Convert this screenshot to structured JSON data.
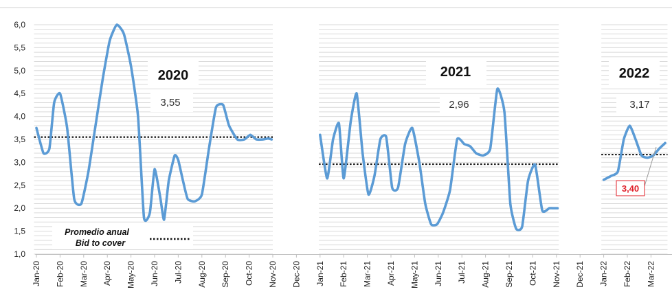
{
  "chart_data": {
    "type": "line",
    "ylim": [
      1.0,
      6.0
    ],
    "y_ticks": [
      "6,0",
      "5,5",
      "5,0",
      "4,5",
      "4,0",
      "3,5",
      "3,0",
      "2,5",
      "2,0",
      "1,5",
      "1,0"
    ],
    "x_ticks": [
      "Jan-20",
      "Feb-20",
      "Mar-20",
      "Apr-20",
      "May-20",
      "Jun-20",
      "Jul-20",
      "Aug-20",
      "Sep-20",
      "Oct-20",
      "Nov-20",
      "Dec-20",
      "Jan-21",
      "Feb-21",
      "Mar-21",
      "Apr-21",
      "May-21",
      "Jun-21",
      "Jul-21",
      "Aug-21",
      "Sep-21",
      "Oct-21",
      "Nov-21",
      "Dec-21",
      "Jan-22",
      "Feb-22",
      "Mar-22"
    ],
    "grid": true,
    "series_color": "#5b9bd5",
    "average_color": "#111111",
    "panels": [
      {
        "year": "2020",
        "average_label": "3,55",
        "average": 3.55,
        "x": [
          0,
          0.3,
          0.55,
          0.75,
          1.0,
          1.3,
          1.6,
          1.9,
          2.2,
          2.5,
          2.8,
          3.1,
          3.4,
          3.7,
          4.0,
          4.3,
          4.55,
          4.8,
          5.0,
          5.25,
          5.4,
          5.6,
          5.85,
          6.0,
          6.2,
          6.4,
          6.7,
          7.0,
          7.3,
          7.6,
          7.9,
          8.15,
          8.5,
          8.8,
          9.05,
          9.3,
          9.6,
          9.8,
          9.95
        ],
        "y": [
          3.75,
          3.2,
          3.3,
          4.3,
          4.5,
          3.75,
          2.2,
          2.1,
          2.8,
          3.8,
          4.8,
          5.65,
          6.0,
          5.8,
          5.1,
          4.0,
          1.8,
          1.9,
          2.85,
          2.2,
          1.75,
          2.6,
          3.15,
          3.05,
          2.6,
          2.2,
          2.15,
          2.3,
          3.3,
          4.2,
          4.25,
          3.8,
          3.5,
          3.5,
          3.6,
          3.5,
          3.5,
          3.52,
          3.5
        ]
      },
      {
        "year": "2021",
        "average_label": "2,96",
        "average": 2.96,
        "x": [
          12.0,
          12.3,
          12.55,
          12.8,
          13.0,
          13.3,
          13.55,
          13.8,
          14.05,
          14.3,
          14.55,
          14.8,
          15.05,
          15.3,
          15.6,
          15.9,
          16.2,
          16.45,
          16.7,
          16.95,
          17.2,
          17.5,
          17.8,
          18.1,
          18.35,
          18.6,
          18.9,
          19.2,
          19.5,
          19.8,
          20.05,
          20.3,
          20.55,
          20.8,
          21.1,
          21.4,
          21.7,
          21.9,
          22.05
        ],
        "y": [
          3.6,
          2.65,
          3.5,
          3.85,
          2.65,
          3.9,
          4.5,
          3.2,
          2.3,
          2.7,
          3.5,
          3.55,
          2.45,
          2.45,
          3.4,
          3.75,
          3.0,
          2.1,
          1.65,
          1.65,
          1.9,
          2.4,
          3.5,
          3.4,
          3.35,
          3.2,
          3.15,
          3.3,
          4.6,
          4.1,
          2.1,
          1.55,
          1.6,
          2.6,
          2.95,
          1.95,
          2.0,
          2.0,
          2.0
        ]
      },
      {
        "year": "2022",
        "average_label": "3,17",
        "average": 3.17,
        "x": [
          24.0,
          24.3,
          24.6,
          24.85,
          25.1,
          25.35,
          25.6,
          25.85,
          26.1,
          26.35,
          26.6
        ],
        "y": [
          2.62,
          2.7,
          2.8,
          3.5,
          3.8,
          3.5,
          3.15,
          3.1,
          3.15,
          3.3,
          3.42
        ],
        "callout_value": 3.4,
        "callout_label": "3,40"
      }
    ],
    "legend": {
      "line1": "Promedio anual",
      "line2": "Bid to cover"
    }
  }
}
